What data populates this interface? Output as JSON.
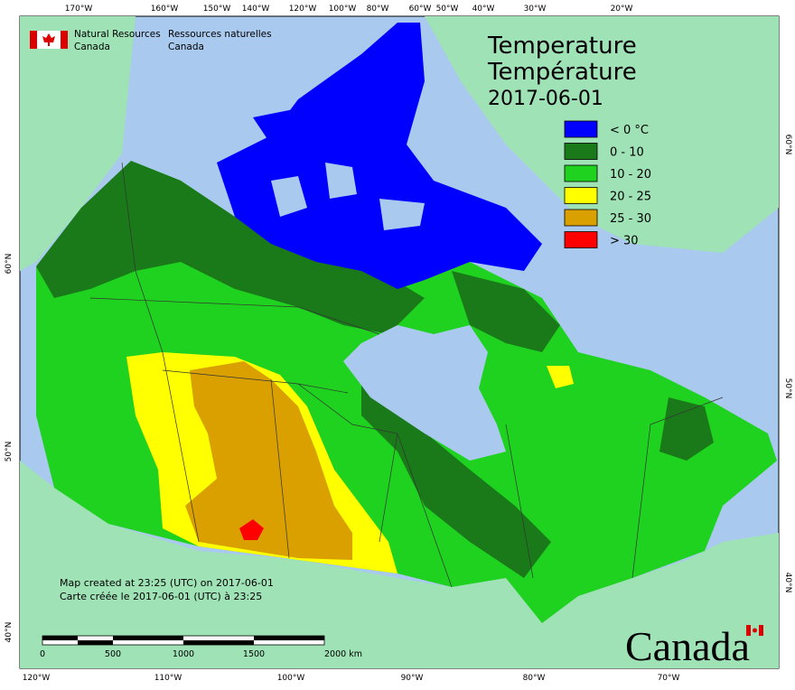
{
  "header": {
    "agency_en": [
      "Natural Resources",
      "Canada"
    ],
    "agency_fr": [
      "Ressources naturelles",
      "Canada"
    ]
  },
  "title": [
    "Temperature",
    "Température",
    "2017-06-01"
  ],
  "legend": [
    {
      "label": "< 0 °C",
      "color": "#0000ff"
    },
    {
      "label": "0 - 10",
      "color": "#1a7a1a"
    },
    {
      "label": "10 - 20",
      "color": "#1fd21f"
    },
    {
      "label": "20 - 25",
      "color": "#ffff00"
    },
    {
      "label": "25 - 30",
      "color": "#d9a000"
    },
    {
      "label": "> 30",
      "color": "#ff0000"
    }
  ],
  "graticule": {
    "top": [
      "170°W",
      "160°W",
      "150°W",
      "140°W",
      "120°W",
      "100°W",
      "80°W",
      "60°W",
      "50°W",
      "40°W",
      "30°W",
      "20°W"
    ],
    "bottom": [
      "120°W",
      "110°W",
      "100°W",
      "90°W",
      "80°W",
      "70°W"
    ],
    "left": [
      "60°N",
      "50°N",
      "40°N"
    ],
    "right": [
      "60°N",
      "50°N",
      "40°N"
    ]
  },
  "notes": [
    "Map created at 23:25 (UTC) on 2017-06-01",
    "Carte créée le 2017-06-01 (UTC) à 23:25"
  ],
  "scale_bar": [
    "0",
    "500",
    "1000",
    "1500",
    "2000 km"
  ],
  "wordmark": "Canada"
}
